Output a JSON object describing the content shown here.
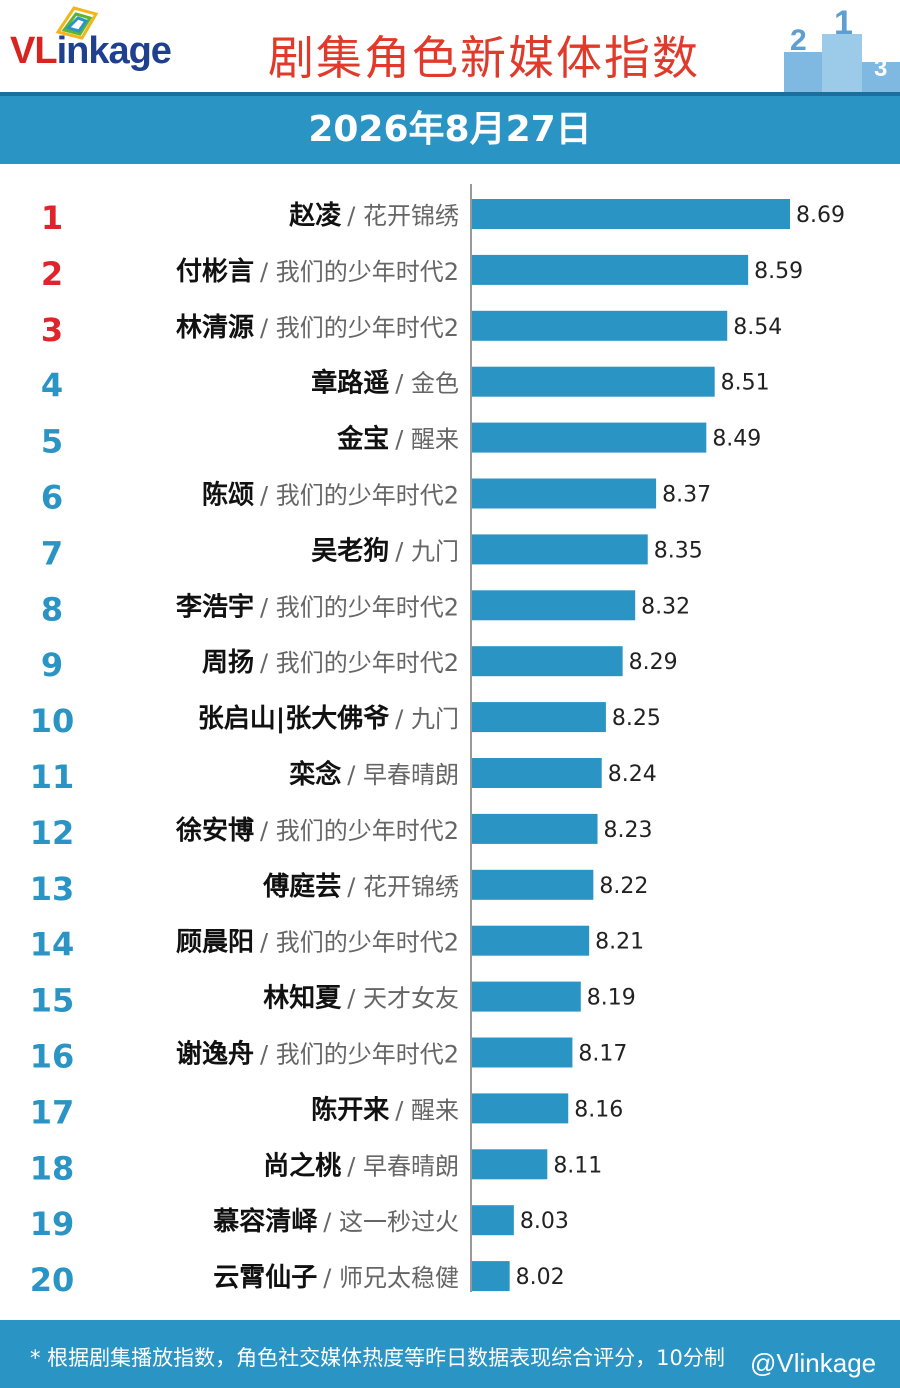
{
  "header": {
    "logo_text_red": "VL",
    "logo_text_blue": "inkage",
    "title": "剧集角色新媒体指数"
  },
  "date": "2026年8月27日",
  "footer": {
    "note": "* 根据剧集播放指数，角色社交媒体热度等昨日数据表现综合评分，10分制",
    "watermark": "@Vlinkage"
  },
  "colors": {
    "bar": "#2a94c4",
    "rank_top": "#e0242b",
    "rank_other": "#2a94c4",
    "title": "#e03a2a"
  },
  "chart_data": {
    "type": "bar",
    "orientation": "horizontal",
    "ranks": [
      "1",
      "2",
      "3",
      "4",
      "5",
      "6",
      "7",
      "8",
      "9",
      "10",
      "11",
      "12",
      "13",
      "14",
      "15",
      "16",
      "17",
      "18",
      "19",
      "20"
    ],
    "characters": [
      "赵凌",
      "付彬言",
      "林清源",
      "章路遥",
      "金宝",
      "陈颂",
      "吴老狗",
      "李浩宇",
      "周扬",
      "张启山|张大佛爷",
      "栾念",
      "徐安博",
      "傅庭芸",
      "顾晨阳",
      "林知夏",
      "谢逸舟",
      "陈开来",
      "尚之桃",
      "慕容清峄",
      "云霄仙子"
    ],
    "dramas": [
      "/ 花开锦绣",
      "/ 我们的少年时代2",
      "/ 我们的少年时代2",
      "/ 金色",
      "/ 醒来",
      "/ 我们的少年时代2",
      "/ 九门",
      "/ 我们的少年时代2",
      "/ 我们的少年时代2",
      "/ 九门",
      "/ 早春晴朗",
      "/ 我们的少年时代2",
      "/ 花开锦绣",
      "/ 我们的少年时代2",
      "/ 天才女友",
      "/ 我们的少年时代2",
      "/ 醒来",
      "/ 早春晴朗",
      "/ 这一秒过火",
      "/ 师兄太稳健"
    ],
    "values": [
      8.69,
      8.59,
      8.54,
      8.51,
      8.49,
      8.37,
      8.35,
      8.32,
      8.29,
      8.25,
      8.24,
      8.23,
      8.22,
      8.21,
      8.19,
      8.17,
      8.16,
      8.11,
      8.03,
      8.02
    ],
    "value_labels": [
      "8.69",
      "8.59",
      "8.54",
      "8.51",
      "8.49",
      "8.37",
      "8.35",
      "8.32",
      "8.29",
      "8.25",
      "8.24",
      "8.23",
      "8.22",
      "8.21",
      "8.19",
      "8.17",
      "8.16",
      "8.11",
      "8.03",
      "8.02"
    ],
    "xlim": [
      7.93,
      8.69
    ]
  }
}
